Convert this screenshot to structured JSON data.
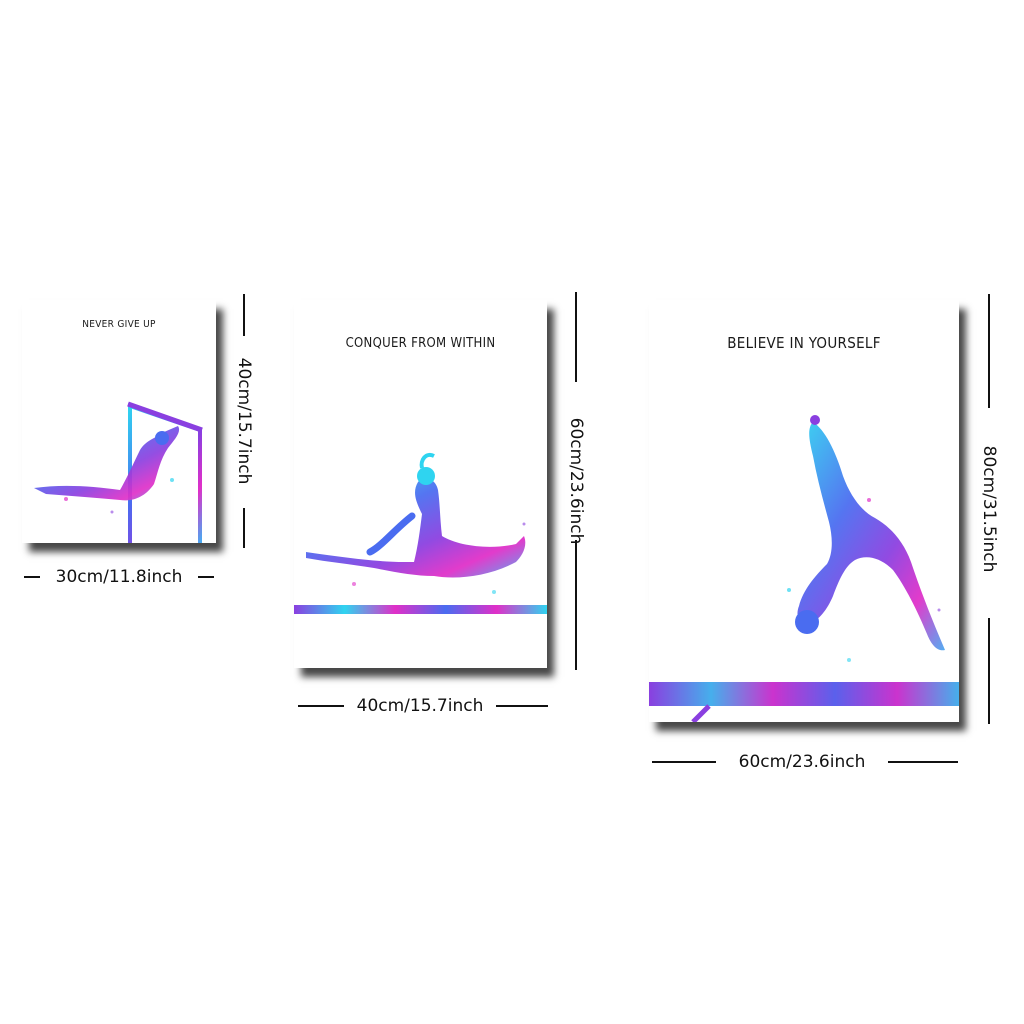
{
  "posters": [
    {
      "title": "NEVER GIVE UP",
      "width_label": "30cm/11.8inch",
      "height_label": "40cm/15.7inch"
    },
    {
      "title": "CONQUER FROM WITHIN",
      "width_label": "40cm/15.7inch",
      "height_label": "60cm/23.6inch"
    },
    {
      "title": "BELIEVE IN YOURSELF",
      "width_label": "60cm/23.6inch",
      "height_label": "80cm/31.5inch"
    }
  ],
  "colors": {
    "cyan": "#2fd4f0",
    "blue": "#4a6cf0",
    "purple": "#8a3fe0",
    "magenta": "#e02fc8"
  },
  "icons": [
    "bar-gymnast-art",
    "split-leap-gymnast-art",
    "backbend-gymnast-art"
  ]
}
